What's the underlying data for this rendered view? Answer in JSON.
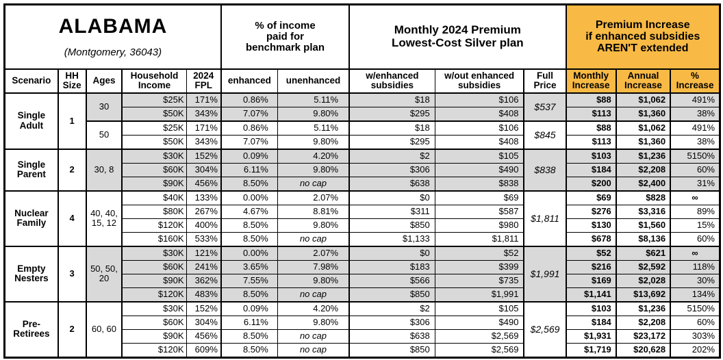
{
  "title": {
    "state": "ALABAMA",
    "location": "(Montgomery, 36043)"
  },
  "colors": {
    "header_orange": "#F8BA45",
    "row_gray": "#D9D9D9",
    "border": "#000000"
  },
  "group_headers": {
    "benchmark": "% of income\npaid for\nbenchmark plan",
    "premium": "Monthly 2024 Premium\nLowest-Cost Silver plan",
    "increase": "Premium Increase\nif enhanced subsidies\nAREN'T extended"
  },
  "columns": {
    "scenario": "Scenario",
    "hh_size": "HH\nSize",
    "ages": "Ages",
    "income": "Household\nIncome",
    "fpl": "2024\nFPL",
    "enhanced": "enhanced",
    "unenhanced": "unenhanced",
    "w_enhanced": "w/enhanced\nsubsidies",
    "wout_enhanced": "w/out enhanced\nsubsidies",
    "full_price": "Full\nPrice",
    "monthly_increase": "Monthly\nIncrease",
    "annual_increase": "Annual\nIncrease",
    "pct_increase": "%\nIncrease"
  },
  "groups": [
    {
      "scenario": "Single Adult",
      "hh_size": "1",
      "subgroups": [
        {
          "ages": "30",
          "full_price": "$537",
          "shaded": true,
          "rows": [
            {
              "income": "$25K",
              "fpl": "171%",
              "enhanced": "0.86%",
              "unenhanced": "5.11%",
              "w_enhanced": "$18",
              "wout_enhanced": "$106",
              "monthly_increase": "$88",
              "annual_increase": "$1,062",
              "pct_increase": "491%"
            },
            {
              "income": "$50K",
              "fpl": "343%",
              "enhanced": "7.07%",
              "unenhanced": "9.80%",
              "w_enhanced": "$295",
              "wout_enhanced": "$408",
              "monthly_increase": "$113",
              "annual_increase": "$1,360",
              "pct_increase": "38%"
            }
          ]
        },
        {
          "ages": "50",
          "full_price": "$845",
          "shaded": false,
          "rows": [
            {
              "income": "$25K",
              "fpl": "171%",
              "enhanced": "0.86%",
              "unenhanced": "5.11%",
              "w_enhanced": "$18",
              "wout_enhanced": "$106",
              "monthly_increase": "$88",
              "annual_increase": "$1,062",
              "pct_increase": "491%"
            },
            {
              "income": "$50K",
              "fpl": "343%",
              "enhanced": "7.07%",
              "unenhanced": "9.80%",
              "w_enhanced": "$295",
              "wout_enhanced": "$408",
              "monthly_increase": "$113",
              "annual_increase": "$1,360",
              "pct_increase": "38%"
            }
          ]
        }
      ]
    },
    {
      "scenario": "Single Parent",
      "hh_size": "2",
      "subgroups": [
        {
          "ages": "30, 8",
          "full_price": "$838",
          "shaded": true,
          "rows": [
            {
              "income": "$30K",
              "fpl": "152%",
              "enhanced": "0.09%",
              "unenhanced": "4.20%",
              "w_enhanced": "$2",
              "wout_enhanced": "$105",
              "monthly_increase": "$103",
              "annual_increase": "$1,236",
              "pct_increase": "5150%"
            },
            {
              "income": "$60K",
              "fpl": "304%",
              "enhanced": "6.11%",
              "unenhanced": "9.80%",
              "w_enhanced": "$306",
              "wout_enhanced": "$490",
              "monthly_increase": "$184",
              "annual_increase": "$2,208",
              "pct_increase": "60%"
            },
            {
              "income": "$90K",
              "fpl": "456%",
              "enhanced": "8.50%",
              "unenhanced": "no cap",
              "w_enhanced": "$638",
              "wout_enhanced": "$838",
              "monthly_increase": "$200",
              "annual_increase": "$2,400",
              "pct_increase": "31%"
            }
          ]
        }
      ]
    },
    {
      "scenario": "Nuclear Family",
      "hh_size": "4",
      "subgroups": [
        {
          "ages": "40, 40,\n15, 12",
          "full_price": "$1,811",
          "shaded": false,
          "rows": [
            {
              "income": "$40K",
              "fpl": "133%",
              "enhanced": "0.00%",
              "unenhanced": "2.07%",
              "w_enhanced": "$0",
              "wout_enhanced": "$69",
              "monthly_increase": "$69",
              "annual_increase": "$828",
              "pct_increase": "∞"
            },
            {
              "income": "$80K",
              "fpl": "267%",
              "enhanced": "4.67%",
              "unenhanced": "8.81%",
              "w_enhanced": "$311",
              "wout_enhanced": "$587",
              "monthly_increase": "$276",
              "annual_increase": "$3,316",
              "pct_increase": "89%"
            },
            {
              "income": "$120K",
              "fpl": "400%",
              "enhanced": "8.50%",
              "unenhanced": "9.80%",
              "w_enhanced": "$850",
              "wout_enhanced": "$980",
              "monthly_increase": "$130",
              "annual_increase": "$1,560",
              "pct_increase": "15%"
            },
            {
              "income": "$160K",
              "fpl": "533%",
              "enhanced": "8.50%",
              "unenhanced": "no cap",
              "w_enhanced": "$1,133",
              "wout_enhanced": "$1,811",
              "monthly_increase": "$678",
              "annual_increase": "$8,136",
              "pct_increase": "60%"
            }
          ]
        }
      ]
    },
    {
      "scenario": "Empty Nesters",
      "hh_size": "3",
      "subgroups": [
        {
          "ages": "50, 50,\n20",
          "full_price": "$1,991",
          "shaded": true,
          "rows": [
            {
              "income": "$30K",
              "fpl": "121%",
              "enhanced": "0.00%",
              "unenhanced": "2.07%",
              "w_enhanced": "$0",
              "wout_enhanced": "$52",
              "monthly_increase": "$52",
              "annual_increase": "$621",
              "pct_increase": "∞"
            },
            {
              "income": "$60K",
              "fpl": "241%",
              "enhanced": "3.65%",
              "unenhanced": "7.98%",
              "w_enhanced": "$183",
              "wout_enhanced": "$399",
              "monthly_increase": "$216",
              "annual_increase": "$2,592",
              "pct_increase": "118%"
            },
            {
              "income": "$90K",
              "fpl": "362%",
              "enhanced": "7.55%",
              "unenhanced": "9.80%",
              "w_enhanced": "$566",
              "wout_enhanced": "$735",
              "monthly_increase": "$169",
              "annual_increase": "$2,028",
              "pct_increase": "30%"
            },
            {
              "income": "$120K",
              "fpl": "483%",
              "enhanced": "8.50%",
              "unenhanced": "no cap",
              "w_enhanced": "$850",
              "wout_enhanced": "$1,991",
              "monthly_increase": "$1,141",
              "annual_increase": "$13,692",
              "pct_increase": "134%"
            }
          ]
        }
      ]
    },
    {
      "scenario": "Pre-Retirees",
      "hh_size": "2",
      "subgroups": [
        {
          "ages": "60, 60",
          "full_price": "$2,569",
          "shaded": false,
          "rows": [
            {
              "income": "$30K",
              "fpl": "152%",
              "enhanced": "0.09%",
              "unenhanced": "4.20%",
              "w_enhanced": "$2",
              "wout_enhanced": "$105",
              "monthly_increase": "$103",
              "annual_increase": "$1,236",
              "pct_increase": "5150%"
            },
            {
              "income": "$60K",
              "fpl": "304%",
              "enhanced": "6.11%",
              "unenhanced": "9.80%",
              "w_enhanced": "$306",
              "wout_enhanced": "$490",
              "monthly_increase": "$184",
              "annual_increase": "$2,208",
              "pct_increase": "60%"
            },
            {
              "income": "$90K",
              "fpl": "456%",
              "enhanced": "8.50%",
              "unenhanced": "no cap",
              "w_enhanced": "$638",
              "wout_enhanced": "$2,569",
              "monthly_increase": "$1,931",
              "annual_increase": "$23,172",
              "pct_increase": "303%"
            },
            {
              "income": "$120K",
              "fpl": "609%",
              "enhanced": "8.50%",
              "unenhanced": "no cap",
              "w_enhanced": "$850",
              "wout_enhanced": "$2,569",
              "monthly_increase": "$1,719",
              "annual_increase": "$20,628",
              "pct_increase": "202%"
            }
          ]
        }
      ]
    }
  ]
}
